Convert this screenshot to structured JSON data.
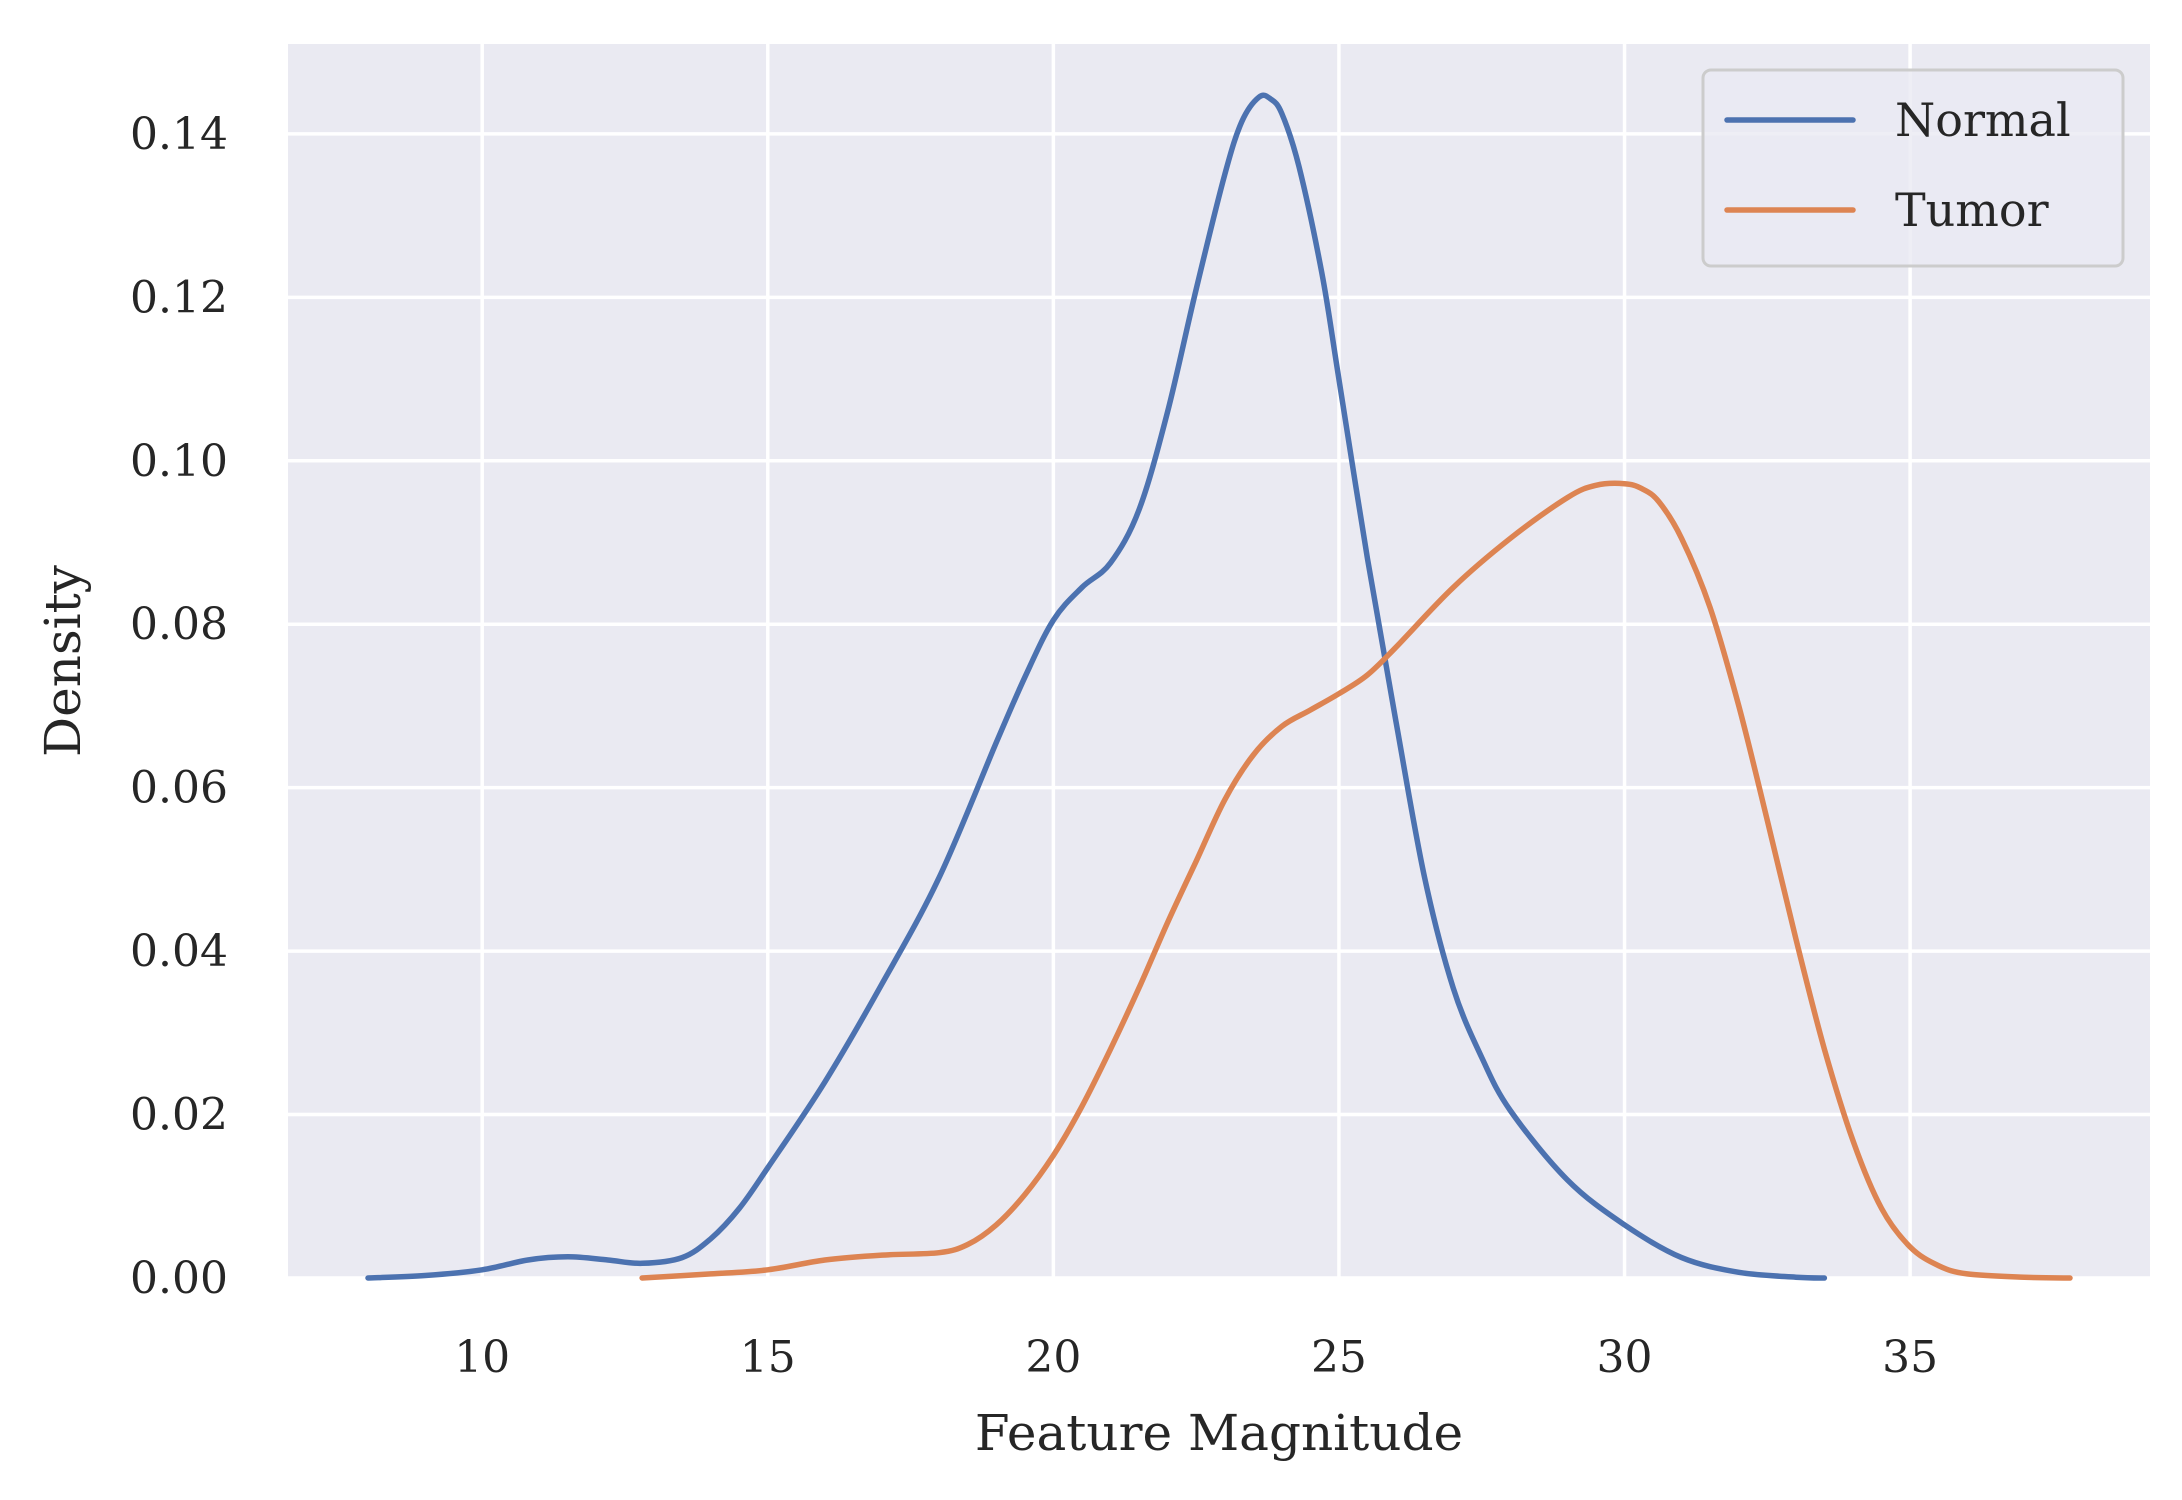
{
  "chart_data": {
    "type": "line",
    "title": "",
    "xlabel": "Feature Magnitude",
    "ylabel": "Density",
    "xlim": [
      6.6,
      39.2
    ],
    "ylim": [
      0,
      0.151
    ],
    "xticks": [
      10,
      15,
      20,
      25,
      30,
      35
    ],
    "xtick_labels": [
      "10",
      "15",
      "20",
      "25",
      "30",
      "35"
    ],
    "yticks": [
      0.0,
      0.02,
      0.04,
      0.06,
      0.08,
      0.1,
      0.12,
      0.14
    ],
    "ytick_labels": [
      "0.00",
      "0.02",
      "0.04",
      "0.06",
      "0.08",
      "0.10",
      "0.12",
      "0.14"
    ],
    "grid": true,
    "legend_position": "top-right",
    "series": [
      {
        "name": "Normal",
        "color": "#4c72b0",
        "x": [
          8.0,
          9.0,
          10.0,
          10.8,
          11.5,
          12.2,
          12.8,
          13.5,
          14.0,
          14.5,
          15.0,
          16.0,
          17.0,
          18.0,
          19.0,
          19.5,
          20.0,
          20.5,
          21.0,
          21.5,
          22.0,
          22.5,
          23.0,
          23.3,
          23.6,
          23.8,
          24.0,
          24.3,
          24.7,
          25.0,
          25.5,
          26.0,
          26.5,
          27.0,
          27.5,
          28.0,
          29.0,
          30.0,
          31.0,
          32.0,
          33.0,
          33.5
        ],
        "y": [
          0.0,
          0.0003,
          0.001,
          0.0022,
          0.0026,
          0.0022,
          0.0018,
          0.0025,
          0.0048,
          0.0085,
          0.0135,
          0.024,
          0.036,
          0.049,
          0.0655,
          0.0735,
          0.0805,
          0.0845,
          0.0875,
          0.094,
          0.106,
          0.121,
          0.135,
          0.1415,
          0.1445,
          0.1443,
          0.1425,
          0.136,
          0.123,
          0.11,
          0.088,
          0.068,
          0.049,
          0.0355,
          0.027,
          0.0205,
          0.012,
          0.0065,
          0.0025,
          0.0007,
          0.0001,
          0.0
        ]
      },
      {
        "name": "Tumor",
        "color": "#dd8452",
        "x": [
          12.8,
          14.0,
          15.0,
          16.0,
          17.0,
          18.0,
          18.5,
          19.0,
          19.5,
          20.0,
          20.5,
          21.0,
          21.5,
          22.0,
          22.5,
          23.0,
          23.5,
          24.0,
          24.5,
          25.0,
          25.5,
          26.0,
          27.0,
          28.0,
          29.0,
          29.5,
          30.0,
          30.3,
          30.6,
          31.0,
          31.5,
          32.0,
          32.5,
          33.0,
          33.5,
          34.0,
          34.5,
          35.0,
          35.5,
          36.0,
          37.0,
          37.8
        ],
        "y": [
          0.0,
          0.0005,
          0.001,
          0.0022,
          0.0028,
          0.0031,
          0.0041,
          0.0065,
          0.0102,
          0.015,
          0.021,
          0.028,
          0.0355,
          0.0435,
          0.051,
          0.0585,
          0.064,
          0.0675,
          0.0695,
          0.0715,
          0.0738,
          0.0772,
          0.0845,
          0.0905,
          0.0955,
          0.097,
          0.0972,
          0.0966,
          0.095,
          0.0905,
          0.082,
          0.07,
          0.056,
          0.0415,
          0.028,
          0.0168,
          0.0085,
          0.0038,
          0.0015,
          0.0005,
          0.0001,
          0.0
        ]
      }
    ]
  }
}
